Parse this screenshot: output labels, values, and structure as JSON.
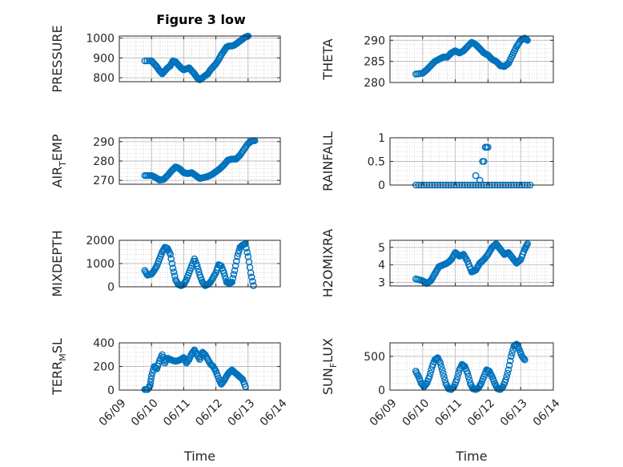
{
  "figure": {
    "title": "Figure 3 low"
  },
  "colors": {
    "marker": "#0072bd",
    "grid": "#c8c8c8",
    "axis": "#262626",
    "background": "#ffffff"
  },
  "x_ticks": [
    "06/09",
    "06/10",
    "06/11",
    "06/12",
    "06/13",
    "06/14"
  ],
  "x_axis_label": "Time",
  "chart_data": [
    {
      "type": "scatter",
      "id": "pressure",
      "title": "Figure 3 low",
      "ylabel": {
        "main": "PRESSURE",
        "sub": "",
        "suffix": ""
      },
      "xlabel": "",
      "xlim": [
        "06/09",
        "06/14"
      ],
      "ylim": [
        780,
        1010
      ],
      "yticks": [
        "800",
        "900",
        "1000"
      ],
      "ytick_values": [
        800,
        900,
        1000
      ],
      "grid": true,
      "points": [
        [
          "06/09 19:00",
          885
        ],
        [
          "06/10 00:00",
          885
        ],
        [
          "06/10 02:00",
          870
        ],
        [
          "06/10 04:00",
          855
        ],
        [
          "06/10 06:00",
          835
        ],
        [
          "06/10 08:00",
          820
        ],
        [
          "06/10 10:00",
          835
        ],
        [
          "06/10 12:00",
          850
        ],
        [
          "06/10 14:00",
          860
        ],
        [
          "06/10 16:00",
          885
        ],
        [
          "06/10 18:00",
          880
        ],
        [
          "06/10 20:00",
          865
        ],
        [
          "06/10 22:00",
          850
        ],
        [
          "06/11 00:00",
          840
        ],
        [
          "06/11 02:00",
          845
        ],
        [
          "06/11 04:00",
          850
        ],
        [
          "06/11 06:00",
          835
        ],
        [
          "06/11 08:00",
          820
        ],
        [
          "06/11 10:00",
          800
        ],
        [
          "06/11 12:00",
          790
        ],
        [
          "06/11 14:00",
          800
        ],
        [
          "06/11 16:00",
          810
        ],
        [
          "06/11 18:00",
          820
        ],
        [
          "06/11 20:00",
          840
        ],
        [
          "06/11 22:00",
          855
        ],
        [
          "06/12 00:00",
          870
        ],
        [
          "06/12 02:00",
          890
        ],
        [
          "06/12 04:00",
          915
        ],
        [
          "06/12 06:00",
          935
        ],
        [
          "06/12 08:00",
          955
        ],
        [
          "06/12 10:00",
          960
        ],
        [
          "06/12 12:00",
          960
        ],
        [
          "06/12 14:00",
          965
        ],
        [
          "06/12 16:00",
          975
        ],
        [
          "06/12 18:00",
          985
        ],
        [
          "06/12 20:00",
          995
        ],
        [
          "06/12 22:00",
          1005
        ],
        [
          "06/13 00:00",
          1010
        ]
      ]
    },
    {
      "type": "scatter",
      "id": "theta",
      "ylabel": {
        "main": "THETA",
        "sub": "",
        "suffix": ""
      },
      "xlabel": "",
      "xlim": [
        "06/09",
        "06/14"
      ],
      "ylim": [
        280,
        291
      ],
      "yticks": [
        "280",
        "285",
        "290"
      ],
      "ytick_values": [
        280,
        285,
        290
      ],
      "grid": true,
      "points": [
        [
          "06/09 19:00",
          282.0
        ],
        [
          "06/10 00:00",
          282.2
        ],
        [
          "06/10 03:00",
          283.0
        ],
        [
          "06/10 06:00",
          284.0
        ],
        [
          "06/10 09:00",
          285.0
        ],
        [
          "06/10 12:00",
          285.5
        ],
        [
          "06/10 15:00",
          286.0
        ],
        [
          "06/10 18:00",
          286.0
        ],
        [
          "06/10 21:00",
          287.0
        ],
        [
          "06/11 00:00",
          287.5
        ],
        [
          "06/11 03:00",
          287.0
        ],
        [
          "06/11 06:00",
          287.5
        ],
        [
          "06/11 09:00",
          288.5
        ],
        [
          "06/11 12:00",
          289.5
        ],
        [
          "06/11 15:00",
          289.0
        ],
        [
          "06/11 18:00",
          288.0
        ],
        [
          "06/11 21:00",
          287.0
        ],
        [
          "06/12 00:00",
          286.5
        ],
        [
          "06/12 03:00",
          285.5
        ],
        [
          "06/12 06:00",
          285.0
        ],
        [
          "06/12 09:00",
          284.0
        ],
        [
          "06/12 12:00",
          283.8
        ],
        [
          "06/12 15:00",
          284.5
        ],
        [
          "06/12 18:00",
          286.5
        ],
        [
          "06/12 21:00",
          288.5
        ],
        [
          "06/13 00:00",
          290.0
        ],
        [
          "06/13 03:00",
          290.5
        ],
        [
          "06/13 05:00",
          290.0
        ]
      ]
    },
    {
      "type": "scatter",
      "id": "airtemp",
      "ylabel": {
        "main": "AIR",
        "sub": "T",
        "suffix": "EMP"
      },
      "xlabel": "",
      "xlim": [
        "06/09",
        "06/14"
      ],
      "ylim": [
        268,
        292
      ],
      "yticks": [
        "270",
        "280",
        "290"
      ],
      "ytick_values": [
        270,
        280,
        290
      ],
      "grid": true,
      "points": [
        [
          "06/09 19:00",
          272.5
        ],
        [
          "06/10 00:00",
          272.5
        ],
        [
          "06/10 03:00",
          271.5
        ],
        [
          "06/10 06:00",
          270.2
        ],
        [
          "06/10 09:00",
          270.5
        ],
        [
          "06/10 12:00",
          272.5
        ],
        [
          "06/10 15:00",
          275.0
        ],
        [
          "06/10 18:00",
          277.0
        ],
        [
          "06/10 21:00",
          276.0
        ],
        [
          "06/11 00:00",
          274.0
        ],
        [
          "06/11 03:00",
          273.5
        ],
        [
          "06/11 06:00",
          274.0
        ],
        [
          "06/11 09:00",
          272.5
        ],
        [
          "06/11 12:00",
          271.0
        ],
        [
          "06/11 15:00",
          271.5
        ],
        [
          "06/11 18:00",
          272.0
        ],
        [
          "06/11 21:00",
          273.0
        ],
        [
          "06/12 00:00",
          274.5
        ],
        [
          "06/12 03:00",
          276.0
        ],
        [
          "06/12 06:00",
          278.0
        ],
        [
          "06/12 09:00",
          280.5
        ],
        [
          "06/12 12:00",
          281.0
        ],
        [
          "06/12 15:00",
          281.0
        ],
        [
          "06/12 18:00",
          283.0
        ],
        [
          "06/12 21:00",
          286.0
        ],
        [
          "06/13 00:00",
          289.0
        ],
        [
          "06/13 03:00",
          290.5
        ],
        [
          "06/13 05:00",
          290.5
        ]
      ]
    },
    {
      "type": "scatter",
      "id": "rainfall",
      "ylabel": {
        "main": "RAINFALL",
        "sub": "",
        "suffix": ""
      },
      "xlabel": "",
      "xlim": [
        "06/09",
        "06/14"
      ],
      "ylim": [
        0,
        1
      ],
      "yticks": [
        "0",
        "0.5",
        "1"
      ],
      "ytick_values": [
        0,
        0.5,
        1
      ],
      "grid": true,
      "zero_run": {
        "from": "06/09 19:00",
        "to": "06/13 07:00",
        "step_hours": 2
      },
      "points": [
        [
          "06/11 15:00",
          0.2
        ],
        [
          "06/11 18:00",
          0.1
        ],
        [
          "06/11 20:00",
          0.5
        ],
        [
          "06/11 21:00",
          0.5
        ],
        [
          "06/11 22:00",
          0.8
        ],
        [
          "06/11 23:00",
          0.8
        ],
        [
          "06/12 00:00",
          0.8
        ]
      ]
    },
    {
      "type": "scatter",
      "id": "mixdepth",
      "ylabel": {
        "main": "MIXDEPTH",
        "sub": "",
        "suffix": ""
      },
      "xlabel": "",
      "xlim": [
        "06/09",
        "06/14"
      ],
      "ylim": [
        0,
        2000
      ],
      "yticks": [
        "0",
        "1000",
        "2000"
      ],
      "ytick_values": [
        0,
        1000,
        2000
      ],
      "grid": true,
      "points": [
        [
          "06/09 19:00",
          700
        ],
        [
          "06/09 21:00",
          500
        ],
        [
          "06/10 00:00",
          550
        ],
        [
          "06/10 02:00",
          700
        ],
        [
          "06/10 04:00",
          900
        ],
        [
          "06/10 06:00",
          1200
        ],
        [
          "06/10 08:00",
          1500
        ],
        [
          "06/10 10:00",
          1700
        ],
        [
          "06/10 12:00",
          1650
        ],
        [
          "06/10 14:00",
          1400
        ],
        [
          "06/10 16:00",
          800
        ],
        [
          "06/10 18:00",
          300
        ],
        [
          "06/10 20:00",
          100
        ],
        [
          "06/10 22:00",
          50
        ],
        [
          "06/11 00:00",
          100
        ],
        [
          "06/11 02:00",
          300
        ],
        [
          "06/11 04:00",
          600
        ],
        [
          "06/11 06:00",
          900
        ],
        [
          "06/11 08:00",
          1200
        ],
        [
          "06/11 10:00",
          900
        ],
        [
          "06/11 12:00",
          500
        ],
        [
          "06/11 14:00",
          200
        ],
        [
          "06/11 16:00",
          50
        ],
        [
          "06/11 18:00",
          100
        ],
        [
          "06/11 20:00",
          200
        ],
        [
          "06/11 22:00",
          400
        ],
        [
          "06/12 00:00",
          600
        ],
        [
          "06/12 02:00",
          950
        ],
        [
          "06/12 04:00",
          900
        ],
        [
          "06/12 06:00",
          600
        ],
        [
          "06/12 08:00",
          200
        ],
        [
          "06/12 10:00",
          150
        ],
        [
          "06/12 12:00",
          200
        ],
        [
          "06/12 14:00",
          700
        ],
        [
          "06/12 16:00",
          1300
        ],
        [
          "06/12 18:00",
          1700
        ],
        [
          "06/12 20:00",
          1800
        ],
        [
          "06/12 22:00",
          1850
        ],
        [
          "06/13 00:00",
          1300
        ],
        [
          "06/13 02:00",
          600
        ],
        [
          "06/13 04:00",
          50
        ]
      ]
    },
    {
      "type": "scatter",
      "id": "h2omixra",
      "ylabel": {
        "main": "H2OMIXRA",
        "sub": "",
        "suffix": ""
      },
      "xlabel": "",
      "xlim": [
        "06/09",
        "06/14"
      ],
      "ylim": [
        2.8,
        5.4
      ],
      "yticks": [
        "3",
        "4",
        "5"
      ],
      "ytick_values": [
        3,
        4,
        5
      ],
      "grid": true,
      "points": [
        [
          "06/09 19:00",
          3.2
        ],
        [
          "06/10 00:00",
          3.1
        ],
        [
          "06/10 03:00",
          2.95
        ],
        [
          "06/10 06:00",
          3.1
        ],
        [
          "06/10 09:00",
          3.5
        ],
        [
          "06/10 12:00",
          3.9
        ],
        [
          "06/10 15:00",
          4.0
        ],
        [
          "06/10 18:00",
          4.1
        ],
        [
          "06/10 21:00",
          4.3
        ],
        [
          "06/11 00:00",
          4.7
        ],
        [
          "06/11 03:00",
          4.5
        ],
        [
          "06/11 06:00",
          4.6
        ],
        [
          "06/11 09:00",
          4.2
        ],
        [
          "06/11 12:00",
          3.6
        ],
        [
          "06/11 15:00",
          3.7
        ],
        [
          "06/11 18:00",
          4.1
        ],
        [
          "06/11 21:00",
          4.3
        ],
        [
          "06/12 00:00",
          4.6
        ],
        [
          "06/12 03:00",
          5.0
        ],
        [
          "06/12 06:00",
          5.2
        ],
        [
          "06/12 09:00",
          4.9
        ],
        [
          "06/12 12:00",
          4.6
        ],
        [
          "06/12 15:00",
          4.7
        ],
        [
          "06/12 18:00",
          4.4
        ],
        [
          "06/12 21:00",
          4.1
        ],
        [
          "06/13 00:00",
          4.3
        ],
        [
          "06/13 03:00",
          4.9
        ],
        [
          "06/13 05:00",
          5.2
        ]
      ]
    },
    {
      "type": "scatter",
      "id": "terrmsl",
      "ylabel": {
        "main": "TERR",
        "sub": "M",
        "suffix": "SL"
      },
      "xlabel": "Time",
      "xlim": [
        "06/09",
        "06/14"
      ],
      "ylim": [
        0,
        400
      ],
      "yticks": [
        "0",
        "200",
        "400"
      ],
      "ytick_values": [
        0,
        200,
        400
      ],
      "grid": true,
      "points": [
        [
          "06/09 19:00",
          5
        ],
        [
          "06/09 21:00",
          5
        ],
        [
          "06/09 23:00",
          40
        ],
        [
          "06/10 00:00",
          120
        ],
        [
          "06/10 02:00",
          200
        ],
        [
          "06/10 04:00",
          180
        ],
        [
          "06/10 06:00",
          250
        ],
        [
          "06/10 08:00",
          300
        ],
        [
          "06/10 10:00",
          230
        ],
        [
          "06/10 12:00",
          270
        ],
        [
          "06/10 14:00",
          260
        ],
        [
          "06/10 16:00",
          250
        ],
        [
          "06/10 18:00",
          245
        ],
        [
          "06/10 20:00",
          250
        ],
        [
          "06/10 22:00",
          260
        ],
        [
          "06/11 00:00",
          275
        ],
        [
          "06/11 02:00",
          230
        ],
        [
          "06/11 04:00",
          260
        ],
        [
          "06/11 06:00",
          310
        ],
        [
          "06/11 08:00",
          340
        ],
        [
          "06/11 10:00",
          300
        ],
        [
          "06/11 12:00",
          260
        ],
        [
          "06/11 14:00",
          320
        ],
        [
          "06/11 16:00",
          300
        ],
        [
          "06/11 18:00",
          260
        ],
        [
          "06/11 20:00",
          220
        ],
        [
          "06/11 22:00",
          200
        ],
        [
          "06/12 00:00",
          160
        ],
        [
          "06/12 02:00",
          100
        ],
        [
          "06/12 04:00",
          50
        ],
        [
          "06/12 06:00",
          80
        ],
        [
          "06/12 08:00",
          120
        ],
        [
          "06/12 10:00",
          150
        ],
        [
          "06/12 12:00",
          170
        ],
        [
          "06/12 14:00",
          150
        ],
        [
          "06/12 16:00",
          130
        ],
        [
          "06/12 18:00",
          110
        ],
        [
          "06/12 20:00",
          90
        ],
        [
          "06/12 22:00",
          30
        ]
      ]
    },
    {
      "type": "scatter",
      "id": "sunflux",
      "ylabel": {
        "main": "SUN",
        "sub": "F",
        "suffix": "LUX"
      },
      "xlabel": "Time",
      "xlim": [
        "06/09",
        "06/14"
      ],
      "ylim": [
        0,
        700
      ],
      "yticks": [
        "0",
        "500"
      ],
      "ytick_values": [
        0,
        500
      ],
      "grid": true,
      "points": [
        [
          "06/09 19:00",
          280
        ],
        [
          "06/09 21:00",
          200
        ],
        [
          "06/09 23:00",
          100
        ],
        [
          "06/10 01:00",
          50
        ],
        [
          "06/10 03:00",
          100
        ],
        [
          "06/10 05:00",
          200
        ],
        [
          "06/10 07:00",
          350
        ],
        [
          "06/10 09:00",
          450
        ],
        [
          "06/10 11:00",
          480
        ],
        [
          "06/10 13:00",
          400
        ],
        [
          "06/10 15:00",
          250
        ],
        [
          "06/10 17:00",
          100
        ],
        [
          "06/10 19:00",
          20
        ],
        [
          "06/10 21:00",
          10
        ],
        [
          "06/10 23:00",
          50
        ],
        [
          "06/11 01:00",
          150
        ],
        [
          "06/11 03:00",
          300
        ],
        [
          "06/11 05:00",
          380
        ],
        [
          "06/11 07:00",
          350
        ],
        [
          "06/11 09:00",
          250
        ],
        [
          "06/11 11:00",
          100
        ],
        [
          "06/11 13:00",
          20
        ],
        [
          "06/11 15:00",
          10
        ],
        [
          "06/11 17:00",
          30
        ],
        [
          "06/11 19:00",
          100
        ],
        [
          "06/11 21:00",
          200
        ],
        [
          "06/11 23:00",
          300
        ],
        [
          "06/12 01:00",
          280
        ],
        [
          "06/12 03:00",
          200
        ],
        [
          "06/12 05:00",
          100
        ],
        [
          "06/12 07:00",
          20
        ],
        [
          "06/12 09:00",
          10
        ],
        [
          "06/12 11:00",
          50
        ],
        [
          "06/12 13:00",
          150
        ],
        [
          "06/12 15:00",
          300
        ],
        [
          "06/12 17:00",
          500
        ],
        [
          "06/12 19:00",
          650
        ],
        [
          "06/12 21:00",
          680
        ],
        [
          "06/12 23:00",
          600
        ],
        [
          "06/13 01:00",
          500
        ],
        [
          "06/13 03:00",
          450
        ]
      ]
    }
  ]
}
